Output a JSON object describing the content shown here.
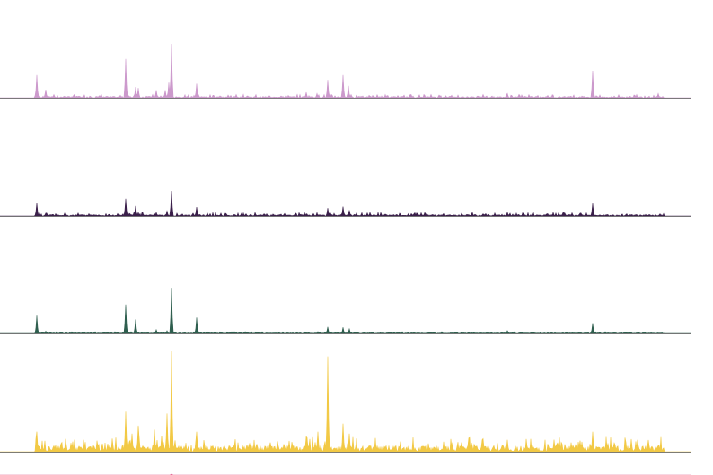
{
  "chart_data": {
    "type": "area",
    "title": "",
    "xlabel": "",
    "ylabel": "",
    "grid": false,
    "legend": "none",
    "xlim": [
      0,
      770
    ],
    "ylim": [
      0,
      1
    ],
    "peaks_format": "[x, height]",
    "series": [
      {
        "color": "#cc99cc",
        "peaks": [
          [
            41,
            0.42
          ],
          [
            51,
            0.15
          ],
          [
            140,
            0.72
          ],
          [
            151,
            0.2
          ],
          [
            154,
            0.18
          ],
          [
            174,
            0.14
          ],
          [
            184,
            0.14
          ],
          [
            188,
            0.28
          ],
          [
            191,
            1.0
          ],
          [
            219,
            0.26
          ],
          [
            341,
            0.1
          ],
          [
            353,
            0.08
          ],
          [
            365,
            0.33
          ],
          [
            382,
            0.42
          ],
          [
            388,
            0.22
          ],
          [
            538,
            0.06
          ],
          [
            565,
            0.08
          ],
          [
            660,
            0.5
          ],
          [
            733,
            0.08
          ]
        ],
        "noise": 0.025
      },
      {
        "color": "#3a1f4a",
        "peaks": [
          [
            41,
            0.36
          ],
          [
            51,
            0.08
          ],
          [
            140,
            0.48
          ],
          [
            151,
            0.28
          ],
          [
            154,
            0.1
          ],
          [
            174,
            0.1
          ],
          [
            186,
            0.14
          ],
          [
            191,
            0.7
          ],
          [
            219,
            0.25
          ],
          [
            274,
            0.06
          ],
          [
            341,
            0.06
          ],
          [
            365,
            0.22
          ],
          [
            382,
            0.26
          ],
          [
            389,
            0.16
          ],
          [
            538,
            0.06
          ],
          [
            565,
            0.1
          ],
          [
            660,
            0.35
          ],
          [
            735,
            0.06
          ]
        ],
        "noise": 0.04
      },
      {
        "color": "#2e5e4e",
        "peaks": [
          [
            41,
            0.38
          ],
          [
            51,
            0.05
          ],
          [
            140,
            0.62
          ],
          [
            151,
            0.3
          ],
          [
            174,
            0.08
          ],
          [
            186,
            0.06
          ],
          [
            191,
            0.98
          ],
          [
            219,
            0.34
          ],
          [
            354,
            0.04
          ],
          [
            365,
            0.14
          ],
          [
            382,
            0.13
          ],
          [
            389,
            0.1
          ],
          [
            565,
            0.06
          ],
          [
            660,
            0.22
          ]
        ],
        "noise": 0.015
      },
      {
        "color": "#f2c945",
        "peaks": [
          [
            41,
            0.2
          ],
          [
            68,
            0.08
          ],
          [
            104,
            0.06
          ],
          [
            120,
            0.08
          ],
          [
            140,
            0.4
          ],
          [
            147,
            0.18
          ],
          [
            154,
            0.26
          ],
          [
            172,
            0.22
          ],
          [
            180,
            0.16
          ],
          [
            186,
            0.38
          ],
          [
            191,
            1.0
          ],
          [
            219,
            0.2
          ],
          [
            228,
            0.06
          ],
          [
            301,
            0.05
          ],
          [
            341,
            0.12
          ],
          [
            354,
            0.2
          ],
          [
            365,
            0.95
          ],
          [
            382,
            0.28
          ],
          [
            389,
            0.18
          ],
          [
            420,
            0.06
          ],
          [
            521,
            0.06
          ],
          [
            538,
            0.13
          ],
          [
            565,
            0.12
          ],
          [
            611,
            0.05
          ],
          [
            660,
            0.2
          ],
          [
            708,
            0.08
          ],
          [
            733,
            0.06
          ]
        ],
        "noise": 0.06
      },
      {
        "color": "#e06090",
        "peaks": [
          [
            191,
            0.08
          ]
        ],
        "noise": 0.0
      }
    ]
  }
}
